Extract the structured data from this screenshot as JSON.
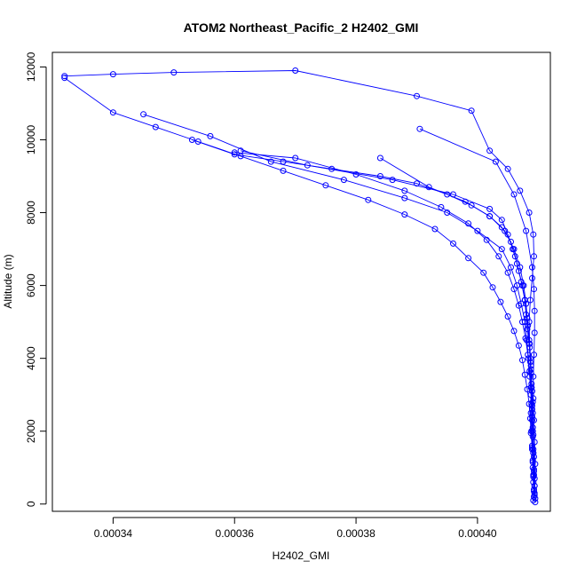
{
  "chart_data": {
    "type": "line",
    "title": "ATOM2 Northeast_Pacific_2 H2402_GMI",
    "xlabel": "H2402_GMI",
    "ylabel": "Altitude (m)",
    "xlim": [
      0.00033,
      0.000412
    ],
    "ylim": [
      -200,
      12400
    ],
    "x_ticks": [
      0.00034,
      0.00036,
      0.00038,
      0.0004
    ],
    "x_tick_labels": [
      "0.00034",
      "0.00036",
      "0.00038",
      "0.00040"
    ],
    "y_ticks": [
      0,
      2000,
      4000,
      6000,
      8000,
      10000,
      12000
    ],
    "y_tick_labels": [
      "0",
      "2000",
      "4000",
      "6000",
      "8000",
      "10000",
      "12000"
    ],
    "series_color": "#0000ff",
    "marker": "open-circle",
    "series": [
      {
        "x": [
          0.0004092,
          0.0004093,
          0.0004092,
          0.0004091,
          0.000409,
          0.0004089,
          0.000409,
          0.0004091,
          0.0004089,
          0.0004088,
          0.0004087,
          0.0004085,
          0.0004082,
          0.000408,
          0.0004078,
          0.0004074,
          0.0004068,
          0.0004062,
          0.0004055,
          0.000404,
          0.000402,
          0.000399,
          0.000395,
          0.00039,
          0.000384,
          0.000376,
          0.000368,
          0.00036,
          0.000353
        ],
        "y": [
          100,
          400,
          800,
          1200,
          1600,
          2000,
          2400,
          2800,
          3200,
          3600,
          4000,
          4400,
          4800,
          5200,
          5600,
          6000,
          6400,
          6800,
          7200,
          7600,
          7900,
          8200,
          8500,
          8800,
          9000,
          9200,
          9400,
          9600,
          10000
        ]
      },
      {
        "x": [
          0.0004093,
          0.0004092,
          0.0004091,
          0.000409,
          0.0004089,
          0.0004088,
          0.0004088,
          0.0004086,
          0.0004084,
          0.0004081,
          0.0004078,
          0.0004072,
          0.0004065,
          0.0004055,
          0.000404,
          0.0004,
          0.000395,
          0.000388,
          0.000378,
          0.000366,
          0.000356,
          0.000345
        ],
        "y": [
          200,
          600,
          1000,
          1500,
          2000,
          2500,
          3000,
          3500,
          4000,
          4500,
          5000,
          5500,
          6000,
          6500,
          7000,
          7500,
          8000,
          8400,
          8900,
          9400,
          10100,
          10700
        ]
      },
      {
        "x": [
          0.0004094,
          0.0004093,
          0.0004092,
          0.0004091,
          0.000409,
          0.0004089,
          0.0004087,
          0.0004085,
          0.0004082,
          0.0004078,
          0.0004072,
          0.0004065,
          0.0004058,
          0.000405,
          0.000404,
          0.000402,
          0.000396,
          0.000386,
          0.000372,
          0.000361
        ],
        "y": [
          300,
          900,
          1500,
          2100,
          2700,
          3300,
          3900,
          4500,
          5100,
          5600,
          6100,
          6600,
          7000,
          7400,
          7800,
          8100,
          8500,
          8900,
          9300,
          9700
        ]
      },
      {
        "x": [
          0.0004095,
          0.0004094,
          0.0004093,
          0.0004092,
          0.0004091,
          0.000409,
          0.0004088,
          0.0004086,
          0.0004083,
          0.000408,
          0.0004076,
          0.000407,
          0.000406,
          0.0004045,
          0.000402,
          0.000398,
          0.000392,
          0.000384
        ],
        "y": [
          150,
          700,
          1300,
          1900,
          2500,
          3100,
          3700,
          4300,
          4900,
          5500,
          6000,
          6500,
          7000,
          7500,
          7900,
          8300,
          8700,
          9500
        ]
      },
      {
        "x": [
          0.0004094,
          0.0004095,
          0.0004094,
          0.0004093,
          0.0004092,
          0.0004092,
          0.0004093,
          0.0004094,
          0.0004094,
          0.0004093,
          0.000409,
          0.000408,
          0.000406,
          0.000403,
          0.0003905
        ],
        "y": [
          500,
          1100,
          1700,
          2300,
          2900,
          3500,
          4100,
          4700,
          5300,
          5900,
          6500,
          7500,
          8500,
          9400,
          10300
        ]
      },
      {
        "x": [
          0.0004094,
          0.0004093,
          0.0004092,
          0.0004091,
          0.000409,
          0.0004089,
          0.0004088,
          0.0004086,
          0.0004085,
          0.0004087,
          0.000409,
          0.0004093,
          0.0004092,
          0.0004085,
          0.000407,
          0.000405,
          0.000402,
          0.000399,
          0.00039,
          0.00037,
          0.00035,
          0.00034,
          0.000332
        ],
        "y": [
          250,
          800,
          1400,
          2000,
          2600,
          3200,
          3800,
          4400,
          5000,
          5600,
          6200,
          6800,
          7400,
          8000,
          8600,
          9200,
          9700,
          10800,
          11200,
          11900,
          11850,
          11800,
          11750
        ]
      },
      {
        "x": [
          0.0004093,
          0.0004092,
          0.0004091,
          0.000409,
          0.0004088,
          0.0004087,
          0.0004085,
          0.0004082,
          0.0004078,
          0.0004074,
          0.0004068,
          0.000406,
          0.000405,
          0.0004038,
          0.0004025,
          0.000401,
          0.0003985,
          0.000396,
          0.000393,
          0.000388,
          0.000382,
          0.000375,
          0.000368,
          0.000361,
          0.000354,
          0.000347,
          0.00034,
          0.000332
        ],
        "y": [
          350,
          750,
          1150,
          1550,
          1950,
          2350,
          2750,
          3150,
          3550,
          3950,
          4350,
          4750,
          5150,
          5550,
          5950,
          6350,
          6750,
          7150,
          7550,
          7950,
          8350,
          8750,
          9150,
          9550,
          9950,
          10350,
          10750,
          11700
        ]
      },
      {
        "x": [
          0.0004095,
          0.0004094,
          0.0004093,
          0.0004092,
          0.0004091,
          0.000409,
          0.0004089,
          0.0004088,
          0.0004086,
          0.0004083,
          0.0004079,
          0.0004074,
          0.0004068,
          0.000406,
          0.000405,
          0.0004035,
          0.0004015,
          0.0003985,
          0.000394,
          0.000388,
          0.00038,
          0.00037,
          0.00036
        ],
        "y": [
          50,
          500,
          950,
          1400,
          1850,
          2300,
          2750,
          3200,
          3650,
          4100,
          4550,
          5000,
          5450,
          5900,
          6350,
          6800,
          7250,
          7700,
          8150,
          8600,
          9050,
          9500,
          9650
        ]
      }
    ]
  }
}
